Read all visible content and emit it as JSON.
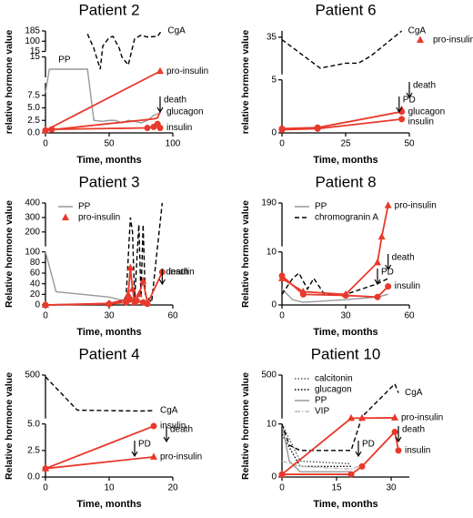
{
  "chart_data": [
    {
      "type": "line",
      "title": "Patient 2",
      "xlabel": "Time, months",
      "ylabel": "relative hormone value",
      "xlim": [
        0,
        100
      ],
      "xticks": [
        0,
        50,
        100
      ],
      "ysegments": [
        {
          "ylim": [
            0,
            10
          ],
          "yticks": [
            {
              "value": 0,
              "label": "0.0"
            },
            2.5,
            {
              "value": 5,
              "label": "5.0"
            },
            7.5
          ]
        },
        {
          "ylim": [
            10,
            15
          ],
          "yticks": [
            15
          ]
        },
        {
          "ylim": [
            15,
            185
          ],
          "yticks": [
            15,
            100,
            185
          ]
        }
      ],
      "series": [
        {
          "name": "CgA",
          "color": "#000000",
          "dash": "dashed",
          "x": [
            33,
            38,
            43,
            45,
            50,
            53,
            58,
            60,
            65,
            70,
            75,
            80,
            88,
            91
          ],
          "values": [
            160,
            40,
            12,
            60,
            130,
            140,
            40,
            15,
            13,
            120,
            150,
            135,
            140,
            185
          ]
        },
        {
          "name": "PP",
          "color": "#999999",
          "x": [
            0,
            3,
            33,
            38,
            45,
            50,
            55,
            60,
            65,
            70,
            75,
            80,
            85,
            90
          ],
          "values": [
            8,
            12,
            12,
            2.5,
            2.3,
            2.5,
            2.5,
            2,
            2.5,
            2.3,
            2,
            2.5,
            3.5,
            4
          ]
        },
        {
          "name": "pro-insulin",
          "color": "#e8392b",
          "marker": "triangle",
          "x": [
            0,
            90
          ],
          "values": [
            0.5,
            11.5
          ]
        },
        {
          "name": "glucagon",
          "color": "#e8392b",
          "x": [
            0,
            85,
            88,
            90
          ],
          "values": [
            0.5,
            2.8,
            3,
            4.2
          ]
        },
        {
          "name": "insulin",
          "color": "#e8392b",
          "marker": "circle",
          "x": [
            0,
            5,
            80,
            85,
            88,
            90
          ],
          "values": [
            0.5,
            0.7,
            1,
            1.2,
            1.8,
            1
          ]
        }
      ],
      "events": [
        {
          "label": "death",
          "x": 90
        }
      ]
    },
    {
      "type": "line",
      "title": "Patient 6",
      "xlabel": "Time, months",
      "ylabel": "relative hormone value",
      "xlim": [
        0,
        50
      ],
      "xticks": [
        0,
        25,
        50
      ],
      "ysegments": [
        {
          "ylim": [
            0,
            5
          ],
          "yticks": [
            0,
            5
          ]
        },
        {
          "ylim": [
            5,
            40
          ],
          "yticks": [
            35
          ]
        }
      ],
      "series": [
        {
          "name": "CgA",
          "color": "#000000",
          "dash": "dashed",
          "x": [
            0,
            15,
            25,
            30,
            35,
            47
          ],
          "values": [
            33,
            10,
            14,
            14,
            20,
            40
          ]
        },
        {
          "name": "pro-insulin",
          "color": "#e8392b",
          "marker": "triangle",
          "legend": true,
          "x": [
            47
          ],
          "values": [
            2.2
          ]
        },
        {
          "name": "glucagon",
          "color": "#e8392b",
          "marker": "circle",
          "x": [
            0,
            14,
            47
          ],
          "values": [
            0.4,
            0.5,
            2
          ]
        },
        {
          "name": "insulin",
          "color": "#e8392b",
          "marker": "circle",
          "x": [
            0,
            14,
            47
          ],
          "values": [
            0.3,
            0.4,
            1.3
          ]
        }
      ],
      "legend": "upper right",
      "events": [
        {
          "label": "PD",
          "x": 46
        },
        {
          "label": "death",
          "x": 50
        }
      ]
    },
    {
      "type": "line",
      "title": "Patient 3",
      "xlabel": "Time, months",
      "ylabel": "Relative hormone value",
      "xlim": [
        0,
        60
      ],
      "xticks": [
        0,
        30,
        60
      ],
      "ysegments": [
        {
          "ylim": [
            0,
            100
          ],
          "yticks": [
            0,
            20,
            40,
            60,
            80,
            100
          ]
        },
        {
          "ylim": [
            100,
            400
          ],
          "yticks": [
            200,
            300,
            400
          ]
        }
      ],
      "series": [
        {
          "color": "#000000",
          "dash": "dashed",
          "x": [
            0,
            30,
            35,
            38,
            40,
            41,
            42,
            44,
            45,
            46,
            47,
            50,
            55
          ],
          "values": [
            0,
            2,
            5,
            15,
            300,
            200,
            10,
            250,
            15,
            250,
            20,
            5,
            400
          ]
        },
        {
          "name": "PP",
          "color": "#999999",
          "legend": true,
          "x": [
            0,
            5,
            30,
            35,
            40,
            45
          ],
          "values": [
            100,
            25,
            15,
            10,
            8,
            5
          ]
        },
        {
          "name": "pro-insulin",
          "color": "#e8392b",
          "marker": "triangle",
          "legend": true,
          "x": [
            0,
            30,
            38,
            39,
            40,
            41,
            42,
            44,
            46,
            48
          ],
          "values": [
            0,
            3,
            10,
            20,
            70,
            30,
            5,
            20,
            45,
            5
          ]
        },
        {
          "name": "insulin",
          "color": "#e8392b",
          "marker": "circle",
          "x": [
            0,
            30,
            38,
            40,
            43,
            46,
            48,
            55
          ],
          "values": [
            0,
            2,
            5,
            10,
            8,
            5,
            2,
            62
          ]
        }
      ],
      "legend": "upper left",
      "events": [
        {
          "label": "death",
          "x": 55
        }
      ]
    },
    {
      "type": "line",
      "title": "Patient 8",
      "xlabel": "Time, months",
      "ylabel": "Relative hormone value",
      "xlim": [
        0,
        60
      ],
      "xticks": [
        0,
        30,
        60
      ],
      "ysegments": [
        {
          "ylim": [
            0,
            10
          ],
          "yticks": [
            0,
            10
          ]
        },
        {
          "ylim": [
            10,
            190
          ],
          "yticks": [
            190
          ]
        }
      ],
      "series": [
        {
          "name": "PP",
          "color": "#999999",
          "legend": true,
          "x": [
            0,
            5,
            10,
            30,
            45,
            50
          ],
          "values": [
            3,
            1,
            0.5,
            1,
            1.5,
            2
          ]
        },
        {
          "name": "chromogranin A",
          "color": "#000000",
          "dash": "dashed",
          "legend": true,
          "x": [
            0,
            5,
            8,
            12,
            15,
            20,
            30,
            45,
            50
          ],
          "values": [
            2,
            5,
            6,
            3,
            5,
            2,
            2,
            4,
            5
          ]
        },
        {
          "name": "pro-insulin",
          "color": "#e8392b",
          "marker": "triangle",
          "x": [
            0,
            10,
            30,
            45,
            47,
            50
          ],
          "values": [
            5,
            2.5,
            2,
            8,
            50,
            180
          ]
        },
        {
          "name": "insulin",
          "color": "#e8392b",
          "marker": "circle",
          "x": [
            0,
            10,
            30,
            45,
            50
          ],
          "values": [
            5.5,
            2,
            1.8,
            1.5,
            3.5
          ]
        }
      ],
      "legend": "upper left",
      "events": [
        {
          "label": "PD",
          "x": 45
        },
        {
          "label": "death",
          "x": 50
        }
      ]
    },
    {
      "type": "line",
      "title": "Patient 4",
      "xlabel": "Time, months",
      "ylabel": "Relative hormone value",
      "xlim": [
        0,
        20
      ],
      "xticks": [
        0,
        10,
        20
      ],
      "ysegments": [
        {
          "ylim": [
            0,
            5
          ],
          "yticks": [
            {
              "value": 0,
              "label": "0.0"
            },
            2.5,
            {
              "value": 5,
              "label": "5.0"
            }
          ]
        },
        {
          "ylim": [
            5,
            500
          ],
          "yticks": [
            500
          ]
        }
      ],
      "series": [
        {
          "name": "CgA",
          "color": "#000000",
          "dash": "dashed",
          "x": [
            0,
            5,
            15,
            17
          ],
          "values": [
            480,
            100,
            90,
            95
          ]
        },
        {
          "name": "insulin",
          "color": "#e8392b",
          "marker": "circle",
          "x": [
            0,
            17
          ],
          "values": [
            0.8,
            4.8
          ]
        },
        {
          "name": "pro-insulin",
          "color": "#e8392b",
          "marker": "triangle",
          "x": [
            0,
            17
          ],
          "values": [
            0.8,
            1.9
          ]
        }
      ],
      "events": [
        {
          "label": "PD",
          "x": 14
        },
        {
          "label": "death",
          "x": 19
        }
      ]
    },
    {
      "type": "line",
      "title": "Patient 10",
      "xlabel": "Time, months",
      "ylabel": "Relative hormone value",
      "xlim": [
        0,
        35
      ],
      "xticks": [
        0,
        15,
        30
      ],
      "ysegments": [
        {
          "ylim": [
            0,
            10
          ],
          "yticks": [
            0,
            10
          ]
        },
        {
          "ylim": [
            10,
            500
          ],
          "yticks": [
            500
          ]
        }
      ],
      "series": [
        {
          "name": "calcitonin",
          "color": "#555555",
          "dash": "dotted",
          "legend": true,
          "x": [
            0,
            5,
            19
          ],
          "values": [
            10,
            3,
            2.5
          ]
        },
        {
          "name": "glucagon",
          "color": "#000000",
          "dash": "dotted",
          "legend": true,
          "x": [
            0,
            5,
            19
          ],
          "values": [
            8,
            2,
            2
          ]
        },
        {
          "name": "PP",
          "color": "#999999",
          "legend": true,
          "x": [
            0,
            2,
            5,
            19
          ],
          "values": [
            10,
            3,
            1,
            1
          ]
        },
        {
          "name": "VIP",
          "color": "#bbbbbb",
          "dash": "dashdot",
          "legend": true,
          "x": [
            0,
            5,
            19,
            21
          ],
          "values": [
            3,
            2,
            1.5,
            2
          ]
        },
        {
          "name": "CgA",
          "color": "#000000",
          "dash": "dashed",
          "x": [
            0,
            2,
            5,
            19,
            22,
            31,
            32
          ],
          "values": [
            10,
            6,
            5,
            5,
            30,
            400,
            300
          ]
        },
        {
          "name": "pro-insulin",
          "color": "#e8392b",
          "marker": "triangle",
          "x": [
            0,
            19,
            22,
            31
          ],
          "values": [
            0.5,
            13,
            14,
            18
          ]
        },
        {
          "name": "insulin",
          "color": "#e8392b",
          "marker": "circle",
          "x": [
            0,
            19,
            22,
            31,
            32
          ],
          "values": [
            0.5,
            0.5,
            2,
            8.5,
            5
          ]
        }
      ],
      "legend": "upper left",
      "events": [
        {
          "label": "PD",
          "x": 21
        },
        {
          "label": "death",
          "x": 32
        }
      ]
    }
  ]
}
